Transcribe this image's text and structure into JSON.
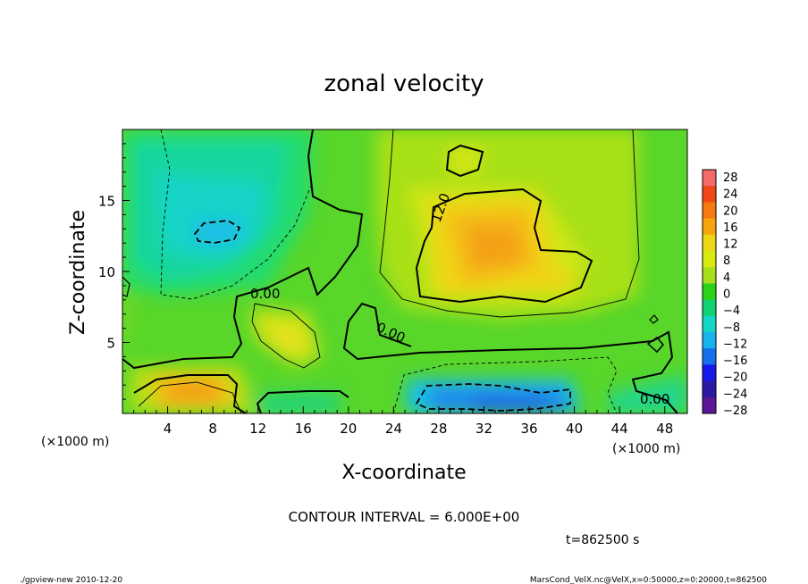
{
  "chart_data": {
    "type": "heatmap",
    "title": "zonal velocity",
    "xlabel": "X-coordinate",
    "ylabel": "Z-coordinate",
    "x_unit_label": "(×1000 m)",
    "y_unit_label": "(×1000 m)",
    "xlim": [
      0,
      50
    ],
    "ylim": [
      0,
      20
    ],
    "x_ticks": [
      "4",
      "8",
      "12",
      "16",
      "20",
      "24",
      "28",
      "32",
      "36",
      "40",
      "44",
      "48"
    ],
    "y_ticks": [
      "5",
      "10",
      "15"
    ],
    "grid": false,
    "colorbar": {
      "position": "right",
      "levels": [
        "28",
        "24",
        "20",
        "16",
        "12",
        "8",
        "4",
        "0",
        "−4",
        "−8",
        "−12",
        "−16",
        "−20",
        "−24",
        "−28"
      ],
      "colors": [
        "#f46a6a",
        "#f24818",
        "#f57a10",
        "#f6a60c",
        "#ecd616",
        "#d8ea10",
        "#a6e01a",
        "#2bd21a",
        "#10d272",
        "#14d6c4",
        "#18b2ec",
        "#1670ec",
        "#1818e8",
        "#2a1aa2",
        "#5b1896"
      ]
    },
    "contour_labels": [
      "0.00",
      "12.0",
      "0.00",
      "0.00"
    ],
    "contour_interval": "CONTOUR INTERVAL = 6.000E+00",
    "time": "t=862500 s"
  },
  "footer": {
    "left": "./gpview-new  2010-12-20",
    "right": "MarsCond_VelX.nc@VelX,x=0:50000,z=0:20000,t=862500"
  }
}
